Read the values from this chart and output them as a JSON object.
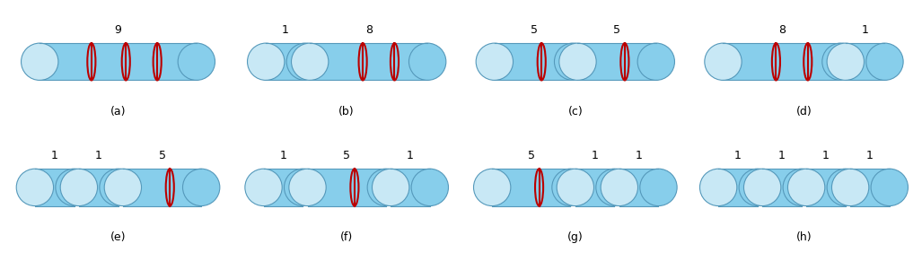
{
  "background_color": "#ffffff",
  "panels": [
    {
      "label": "(a)",
      "pieces": [
        4
      ],
      "values": [
        9
      ]
    },
    {
      "label": "(b)",
      "pieces": [
        1,
        3
      ],
      "values": [
        1,
        8
      ]
    },
    {
      "label": "(c)",
      "pieces": [
        2,
        2
      ],
      "values": [
        5,
        5
      ]
    },
    {
      "label": "(d)",
      "pieces": [
        3,
        1
      ],
      "values": [
        8,
        1
      ]
    },
    {
      "label": "(e)",
      "pieces": [
        1,
        1,
        2
      ],
      "values": [
        1,
        1,
        5
      ]
    },
    {
      "label": "(f)",
      "pieces": [
        1,
        2,
        1
      ],
      "values": [
        1,
        5,
        1
      ]
    },
    {
      "label": "(g)",
      "pieces": [
        2,
        1,
        1
      ],
      "values": [
        5,
        1,
        1
      ]
    },
    {
      "label": "(h)",
      "pieces": [
        1,
        1,
        1,
        1
      ],
      "values": [
        1,
        1,
        1,
        1
      ]
    }
  ],
  "face_color": "#87ceeb",
  "light_color": "#c8e8f5",
  "edge_color": "#5599bb",
  "cut_color": "#bb0000",
  "text_color": "#000000",
  "label_color": "#000000",
  "font_size": 9,
  "label_font_size": 9,
  "cuts_per_piece": {
    "1": [],
    "2": [
      0.6
    ],
    "3": [
      0.45,
      0.72
    ],
    "4": [
      0.33,
      0.55,
      0.75
    ]
  }
}
